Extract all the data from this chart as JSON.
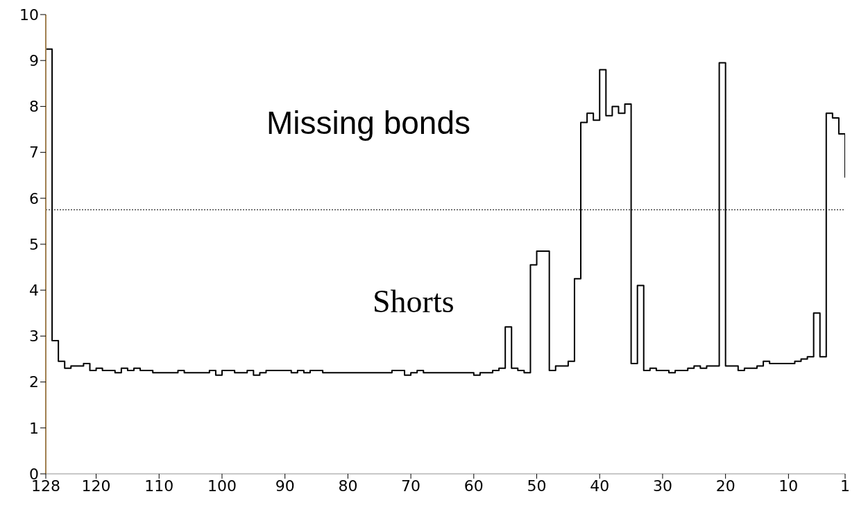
{
  "chart_data": {
    "type": "step",
    "annotations": [
      "Missing bonds",
      "Shorts"
    ],
    "x": [
      128,
      127,
      126,
      125,
      124,
      123,
      122,
      121,
      120,
      119,
      118,
      117,
      116,
      115,
      114,
      113,
      112,
      111,
      110,
      109,
      108,
      107,
      106,
      105,
      104,
      103,
      102,
      101,
      100,
      99,
      98,
      97,
      96,
      95,
      94,
      93,
      92,
      91,
      90,
      89,
      88,
      87,
      86,
      85,
      84,
      83,
      82,
      81,
      80,
      79,
      78,
      77,
      76,
      75,
      74,
      73,
      72,
      71,
      70,
      69,
      68,
      67,
      66,
      65,
      64,
      63,
      62,
      61,
      60,
      59,
      58,
      57,
      56,
      55,
      54,
      53,
      52,
      51,
      50,
      49,
      48,
      47,
      46,
      45,
      44,
      43,
      42,
      41,
      40,
      39,
      38,
      37,
      36,
      35,
      34,
      33,
      32,
      31,
      30,
      29,
      28,
      27,
      26,
      25,
      24,
      23,
      22,
      21,
      20,
      19,
      18,
      17,
      16,
      15,
      14,
      13,
      12,
      11,
      10,
      9,
      8,
      7,
      6,
      5,
      4,
      3,
      2,
      1
    ],
    "series": [
      {
        "color": "#000000",
        "values": [
          9.25,
          2.9,
          2.45,
          2.3,
          2.35,
          2.35,
          2.4,
          2.25,
          2.3,
          2.25,
          2.25,
          2.2,
          2.3,
          2.25,
          2.3,
          2.25,
          2.25,
          2.2,
          2.2,
          2.2,
          2.2,
          2.25,
          2.2,
          2.2,
          2.2,
          2.2,
          2.25,
          2.15,
          2.25,
          2.25,
          2.2,
          2.2,
          2.25,
          2.15,
          2.2,
          2.25,
          2.25,
          2.25,
          2.25,
          2.2,
          2.25,
          2.2,
          2.25,
          2.25,
          2.2,
          2.2,
          2.2,
          2.2,
          2.2,
          2.2,
          2.2,
          2.2,
          2.2,
          2.2,
          2.2,
          2.25,
          2.25,
          2.15,
          2.2,
          2.25,
          2.2,
          2.2,
          2.2,
          2.2,
          2.2,
          2.2,
          2.2,
          2.2,
          2.15,
          2.2,
          2.2,
          2.25,
          2.3,
          3.2,
          2.3,
          2.25,
          2.2,
          4.55,
          4.85,
          4.85,
          2.25,
          2.35,
          2.35,
          2.45,
          4.25,
          7.65,
          7.85,
          7.7,
          8.8,
          7.8,
          8.0,
          7.85,
          8.05,
          2.4,
          4.1,
          2.25,
          2.3,
          2.25,
          2.25,
          2.2,
          2.25,
          2.25,
          2.3,
          2.35,
          2.3,
          2.35,
          2.35,
          8.95,
          2.35,
          2.35,
          2.25,
          2.3,
          2.3,
          2.35,
          2.45,
          2.4,
          2.4,
          2.4,
          2.4,
          2.45,
          2.5,
          2.55,
          3.5,
          2.55,
          7.85,
          7.75,
          7.4,
          6.45
        ]
      }
    ],
    "xlim": [
      128,
      1
    ],
    "xticks": [
      128,
      120,
      110,
      100,
      90,
      80,
      70,
      60,
      50,
      40,
      30,
      20,
      10,
      1
    ],
    "ylim": [
      0,
      10
    ],
    "yticks": [
      0,
      1,
      2,
      3,
      4,
      5,
      6,
      7,
      8,
      9,
      10
    ],
    "ref_lines": [
      {
        "axis": "y",
        "value": 5.75,
        "line_style": "dotted",
        "color": "#000000"
      }
    ],
    "grid": false,
    "legend": false
  }
}
